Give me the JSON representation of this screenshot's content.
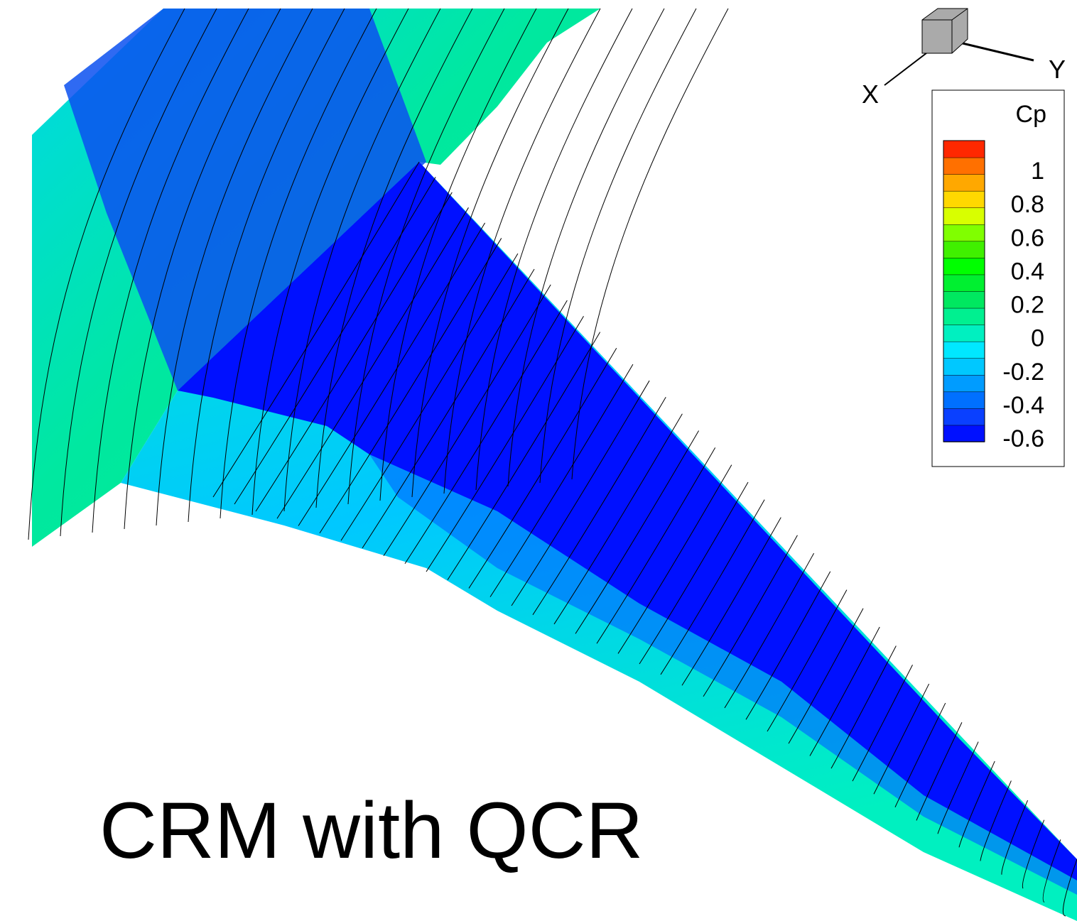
{
  "title": "CRM with QCR",
  "axes": {
    "x": "X",
    "y": "Y"
  },
  "legend": {
    "title": "Cp",
    "labels": [
      "1",
      "0.8",
      "0.6",
      "0.4",
      "0.2",
      "0",
      "-0.2",
      "-0.4",
      "-0.6"
    ],
    "colors": [
      "#0010ff",
      "#0a40ff",
      "#0070ff",
      "#009cff",
      "#00c8ff",
      "#00e8ff",
      "#00f0c0",
      "#00f090",
      "#00e860",
      "#00f030",
      "#00ff00",
      "#40f000",
      "#80ff00",
      "#d8ff00",
      "#ffd800",
      "#ffa800",
      "#ff7000",
      "#ff2800"
    ]
  }
}
